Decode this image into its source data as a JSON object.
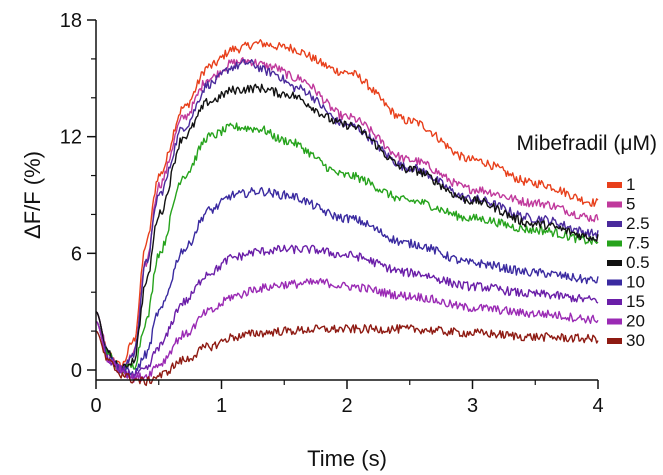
{
  "chart_data": {
    "type": "line",
    "xlabel": "Time (s)",
    "ylabel": "ΔF/F  (%)",
    "xlim": [
      0,
      4
    ],
    "ylim": [
      0,
      18
    ],
    "x_ticks": [
      0,
      1,
      2,
      3,
      4
    ],
    "y_ticks": [
      0,
      6,
      12,
      18
    ],
    "grid": false,
    "legend": {
      "title": "Mibefradil (μM)",
      "placement": "right"
    },
    "series": [
      {
        "name": "1",
        "color": "#e8401c",
        "x": [
          0,
          0.1,
          0.2,
          0.3,
          0.4,
          0.5,
          0.7,
          0.9,
          1.1,
          1.3,
          1.5,
          2.0,
          2.5,
          3.0,
          3.5,
          4.0
        ],
        "y": [
          3.0,
          0.8,
          0.2,
          1.5,
          6.5,
          10.0,
          13.5,
          15.6,
          16.5,
          16.8,
          16.6,
          15.3,
          12.8,
          10.8,
          9.6,
          8.6
        ]
      },
      {
        "name": "5",
        "color": "#c0399c",
        "x": [
          0,
          0.1,
          0.2,
          0.3,
          0.4,
          0.5,
          0.7,
          0.9,
          1.1,
          1.2,
          1.4,
          1.6,
          2.0,
          2.5,
          3.0,
          3.5,
          4.0
        ],
        "y": [
          3.0,
          0.8,
          0.0,
          0.8,
          5.5,
          9.5,
          13.0,
          15.0,
          15.8,
          15.9,
          15.6,
          15.0,
          13.0,
          10.8,
          9.3,
          8.6,
          7.8
        ]
      },
      {
        "name": "2.5",
        "color": "#4a2a9c",
        "x": [
          0,
          0.1,
          0.2,
          0.3,
          0.4,
          0.5,
          0.7,
          0.9,
          1.1,
          1.2,
          1.4,
          1.6,
          2.0,
          2.5,
          3.0,
          3.5,
          4.0
        ],
        "y": [
          3.0,
          0.8,
          0.0,
          0.8,
          5.5,
          9.0,
          12.5,
          14.7,
          15.6,
          15.8,
          15.3,
          14.5,
          12.6,
          10.4,
          8.8,
          7.8,
          7.0
        ]
      },
      {
        "name": "7.5",
        "color": "#26a31c",
        "x": [
          0,
          0.1,
          0.2,
          0.3,
          0.4,
          0.5,
          0.7,
          0.9,
          1.1,
          1.3,
          1.5,
          2.0,
          2.5,
          3.0,
          3.5,
          4.0
        ],
        "y": [
          2.5,
          0.8,
          0.0,
          0.2,
          2.5,
          6.0,
          10.0,
          12.0,
          12.5,
          12.4,
          11.8,
          10.0,
          8.7,
          7.8,
          7.2,
          6.6
        ]
      },
      {
        "name": "0.5",
        "color": "#111111",
        "x": [
          0,
          0.1,
          0.2,
          0.3,
          0.4,
          0.5,
          0.7,
          0.9,
          1.1,
          1.3,
          1.5,
          2.0,
          2.5,
          3.0,
          3.5,
          4.0
        ],
        "y": [
          3.0,
          0.8,
          0.0,
          0.5,
          4.5,
          8.0,
          12.0,
          13.8,
          14.4,
          14.5,
          14.2,
          12.6,
          10.3,
          8.7,
          7.5,
          6.8
        ]
      },
      {
        "name": "10",
        "color": "#3a2aa0",
        "x": [
          0,
          0.1,
          0.2,
          0.3,
          0.4,
          0.5,
          0.7,
          0.9,
          1.1,
          1.3,
          1.5,
          2.0,
          2.5,
          3.0,
          3.5,
          4.0
        ],
        "y": [
          2.5,
          0.6,
          0.0,
          -0.2,
          0.8,
          3.0,
          6.2,
          8.2,
          9.0,
          9.2,
          9.0,
          7.8,
          6.5,
          5.5,
          5.0,
          4.6
        ]
      },
      {
        "name": "15",
        "color": "#6a1ea8",
        "x": [
          0,
          0.1,
          0.2,
          0.3,
          0.4,
          0.5,
          0.7,
          0.9,
          1.1,
          1.3,
          1.5,
          1.7,
          2.0,
          2.5,
          3.0,
          3.5,
          4.0
        ],
        "y": [
          2.5,
          0.5,
          0.0,
          -0.3,
          0.0,
          1.2,
          3.5,
          5.0,
          5.8,
          6.1,
          6.2,
          6.2,
          5.9,
          5.0,
          4.3,
          3.9,
          3.6
        ]
      },
      {
        "name": "20",
        "color": "#9a2ab4",
        "x": [
          0,
          0.1,
          0.2,
          0.3,
          0.4,
          0.5,
          0.7,
          0.9,
          1.1,
          1.3,
          1.5,
          1.8,
          2.0,
          2.5,
          3.0,
          3.5,
          4.0
        ],
        "y": [
          2.5,
          0.5,
          0.0,
          -0.4,
          -0.3,
          0.3,
          1.8,
          3.0,
          3.8,
          4.2,
          4.4,
          4.5,
          4.3,
          3.8,
          3.2,
          2.9,
          2.6
        ]
      },
      {
        "name": "30",
        "color": "#8e1a12",
        "x": [
          0,
          0.1,
          0.2,
          0.3,
          0.4,
          0.5,
          0.7,
          0.9,
          1.1,
          1.3,
          1.5,
          1.8,
          2.0,
          2.5,
          3.0,
          3.5,
          4.0
        ],
        "y": [
          2.0,
          0.4,
          -0.2,
          -0.5,
          -0.6,
          -0.3,
          0.5,
          1.2,
          1.7,
          1.9,
          2.0,
          2.1,
          2.1,
          2.1,
          1.9,
          1.7,
          1.6
        ]
      }
    ]
  }
}
